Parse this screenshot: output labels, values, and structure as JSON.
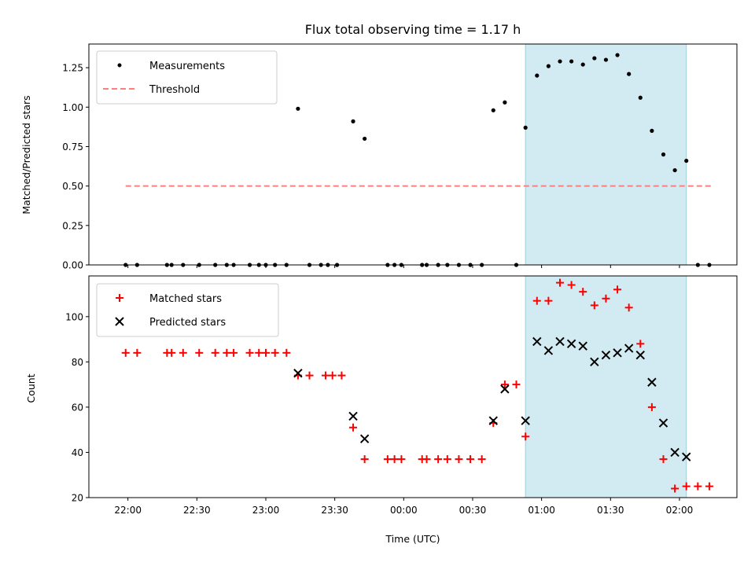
{
  "chart_data": [
    {
      "type": "scatter",
      "title": "Flux total observing time = 1.17 h",
      "xlabel": "",
      "ylabel": "Matched/Predicted stars",
      "ylim": [
        0,
        1.4
      ],
      "yticks": [
        "0.00",
        "0.25",
        "0.50",
        "0.75",
        "1.00",
        "1.25"
      ],
      "shaded_interval": [
        "00:53",
        "02:03"
      ],
      "legend_position": "upper left",
      "series": [
        {
          "name": "Measurements",
          "marker": "dot",
          "color": "#000000",
          "points": [
            [
              "21:59",
              0
            ],
            [
              "22:04",
              0
            ],
            [
              "22:17",
              0
            ],
            [
              "22:19",
              0
            ],
            [
              "22:24",
              0
            ],
            [
              "22:31",
              0
            ],
            [
              "22:38",
              0
            ],
            [
              "22:43",
              0
            ],
            [
              "22:46",
              0
            ],
            [
              "22:53",
              0
            ],
            [
              "22:57",
              0
            ],
            [
              "23:00",
              0
            ],
            [
              "23:04",
              0
            ],
            [
              "23:09",
              0
            ],
            [
              "23:14",
              0.99
            ],
            [
              "23:19",
              0
            ],
            [
              "23:24",
              0
            ],
            [
              "23:27",
              0
            ],
            [
              "23:31",
              0
            ],
            [
              "23:38",
              0.91
            ],
            [
              "23:43",
              0.8
            ],
            [
              "23:53",
              0
            ],
            [
              "23:56",
              0
            ],
            [
              "23:59",
              0
            ],
            [
              "00:08",
              0
            ],
            [
              "00:10",
              0
            ],
            [
              "00:15",
              0
            ],
            [
              "00:19",
              0
            ],
            [
              "00:24",
              0
            ],
            [
              "00:29",
              0
            ],
            [
              "00:34",
              0
            ],
            [
              "00:39",
              0.98
            ],
            [
              "00:44",
              1.03
            ],
            [
              "00:49",
              0
            ],
            [
              "00:53",
              0.87
            ],
            [
              "00:58",
              1.2
            ],
            [
              "01:03",
              1.26
            ],
            [
              "01:08",
              1.29
            ],
            [
              "01:13",
              1.29
            ],
            [
              "01:18",
              1.27
            ],
            [
              "01:23",
              1.31
            ],
            [
              "01:28",
              1.3
            ],
            [
              "01:33",
              1.33
            ],
            [
              "01:38",
              1.21
            ],
            [
              "01:43",
              1.06
            ],
            [
              "01:48",
              0.85
            ],
            [
              "01:53",
              0.7
            ],
            [
              "01:58",
              0.6
            ],
            [
              "02:03",
              0.66
            ],
            [
              "02:08",
              0
            ],
            [
              "02:13",
              0
            ]
          ]
        },
        {
          "name": "Threshold",
          "style": "dashed-line",
          "color": "#ff7f7f",
          "points": [
            [
              "21:59",
              0.5
            ],
            [
              "02:14",
              0.5
            ]
          ]
        }
      ]
    },
    {
      "type": "scatter",
      "xlabel": "Time (UTC)",
      "ylabel": "Count",
      "ylim": [
        20,
        118
      ],
      "yticks": [
        "20",
        "40",
        "60",
        "80",
        "100"
      ],
      "xticks": [
        "22:00",
        "22:30",
        "23:00",
        "23:30",
        "00:00",
        "00:30",
        "01:00",
        "01:30",
        "02:00"
      ],
      "shaded_interval": [
        "00:53",
        "02:03"
      ],
      "legend_position": "upper left",
      "series": [
        {
          "name": "Matched stars",
          "marker": "plus",
          "color": "#ff0000",
          "points": [
            [
              "21:59",
              84
            ],
            [
              "22:04",
              84
            ],
            [
              "22:17",
              84
            ],
            [
              "22:19",
              84
            ],
            [
              "22:24",
              84
            ],
            [
              "22:31",
              84
            ],
            [
              "22:38",
              84
            ],
            [
              "22:43",
              84
            ],
            [
              "22:46",
              84
            ],
            [
              "22:53",
              84
            ],
            [
              "22:57",
              84
            ],
            [
              "23:00",
              84
            ],
            [
              "23:04",
              84
            ],
            [
              "23:09",
              84
            ],
            [
              "23:14",
              74
            ],
            [
              "23:19",
              74
            ],
            [
              "23:26",
              74
            ],
            [
              "23:29",
              74
            ],
            [
              "23:33",
              74
            ],
            [
              "23:38",
              51
            ],
            [
              "23:43",
              37
            ],
            [
              "23:53",
              37
            ],
            [
              "23:56",
              37
            ],
            [
              "23:59",
              37
            ],
            [
              "00:08",
              37
            ],
            [
              "00:10",
              37
            ],
            [
              "00:15",
              37
            ],
            [
              "00:19",
              37
            ],
            [
              "00:24",
              37
            ],
            [
              "00:29",
              37
            ],
            [
              "00:34",
              37
            ],
            [
              "00:39",
              53
            ],
            [
              "00:44",
              70
            ],
            [
              "00:49",
              70
            ],
            [
              "00:53",
              47
            ],
            [
              "00:58",
              107
            ],
            [
              "01:03",
              107
            ],
            [
              "01:08",
              115
            ],
            [
              "01:13",
              114
            ],
            [
              "01:18",
              111
            ],
            [
              "01:23",
              105
            ],
            [
              "01:28",
              108
            ],
            [
              "01:33",
              112
            ],
            [
              "01:38",
              104
            ],
            [
              "01:43",
              88
            ],
            [
              "01:48",
              60
            ],
            [
              "01:53",
              37
            ],
            [
              "01:58",
              24
            ],
            [
              "02:03",
              25
            ],
            [
              "02:08",
              25
            ],
            [
              "02:13",
              25
            ]
          ]
        },
        {
          "name": "Predicted stars",
          "marker": "x",
          "color": "#000000",
          "points": [
            [
              "23:14",
              75
            ],
            [
              "23:38",
              56
            ],
            [
              "23:43",
              46
            ],
            [
              "00:39",
              54
            ],
            [
              "00:44",
              68
            ],
            [
              "00:53",
              54
            ],
            [
              "00:58",
              89
            ],
            [
              "01:03",
              85
            ],
            [
              "01:08",
              89
            ],
            [
              "01:13",
              88
            ],
            [
              "01:18",
              87
            ],
            [
              "01:23",
              80
            ],
            [
              "01:28",
              83
            ],
            [
              "01:33",
              84
            ],
            [
              "01:38",
              86
            ],
            [
              "01:43",
              83
            ],
            [
              "01:48",
              71
            ],
            [
              "01:53",
              53
            ],
            [
              "01:58",
              40
            ],
            [
              "02:03",
              38
            ]
          ]
        }
      ]
    }
  ]
}
